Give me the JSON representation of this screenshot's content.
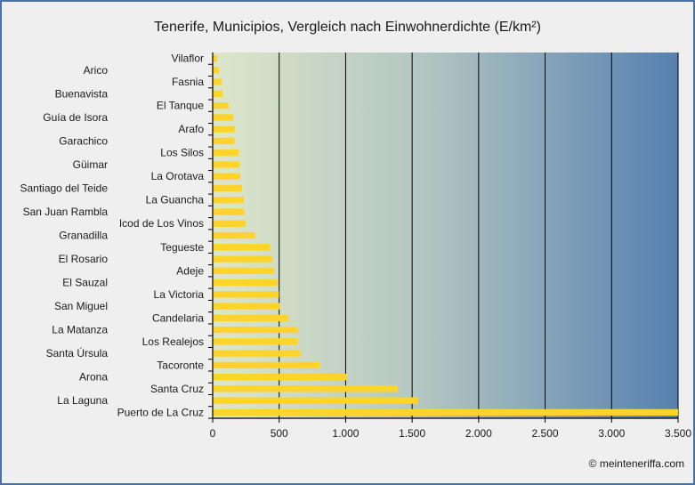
{
  "chart_data": {
    "type": "bar",
    "orientation": "horizontal",
    "title": "Tenerife, Municipios, Vergleich nach Einwohnerdichte (E/km²)",
    "xlabel": "",
    "ylabel": "",
    "xlim": [
      0,
      3500
    ],
    "grid": true,
    "xticks": [
      0,
      500,
      1000,
      1500,
      2000,
      2500,
      3000,
      3500
    ],
    "xtick_labels": [
      "0",
      "500",
      "1.000",
      "1.500",
      "2.000",
      "2.500",
      "3.000",
      "3.500"
    ],
    "categories": [
      "Vilaflor",
      "Arico",
      "Fasnia",
      "Buenavista",
      "El Tanque",
      "Guía de Isora",
      "Arafo",
      "Garachico",
      "Los Silos",
      "Güimar",
      "La Orotava",
      "Santiago del Teide",
      "La Guancha",
      "San Juan Rambla",
      "Icod de Los Vinos",
      "Granadilla",
      "Tegueste",
      "El Rosario",
      "Adeje",
      "El Sauzal",
      "La Victoria",
      "San Miguel",
      "Candelaria",
      "La Matanza",
      "Los Realejos",
      "Santa Úrsula",
      "Tacoronte",
      "Arona",
      "Santa Cruz",
      "La Laguna",
      "Puerto de La Cruz"
    ],
    "values": [
      33,
      47,
      67,
      74,
      120,
      154,
      167,
      165,
      197,
      204,
      207,
      221,
      234,
      238,
      248,
      321,
      432,
      448,
      462,
      492,
      499,
      505,
      569,
      642,
      640,
      662,
      807,
      1011,
      1392,
      1546,
      3500
    ],
    "bar_color": "#ffd42a",
    "background_gradient": [
      "#dde6c9",
      "#5680b0"
    ],
    "border_color": "#4a70a8"
  },
  "footer": {
    "copyright": "© meinteneriffa.com"
  }
}
